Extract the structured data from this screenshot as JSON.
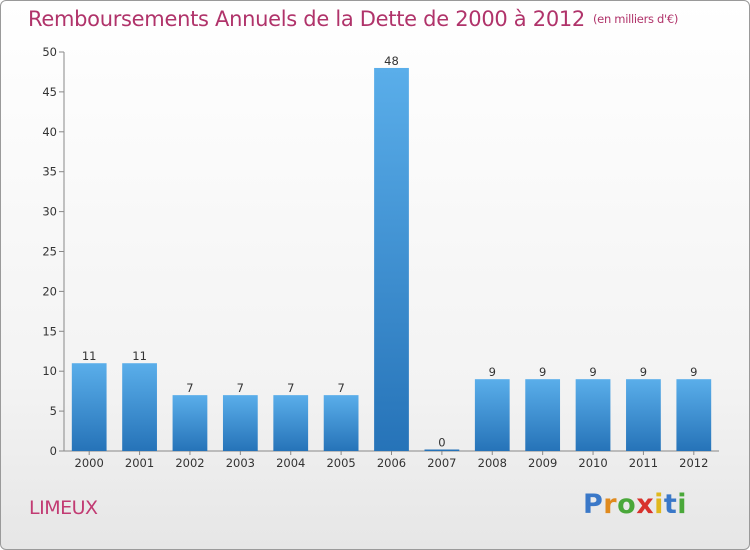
{
  "chart_data": {
    "type": "bar",
    "title": "Remboursements Annuels de la Dette de 2000 à 2012",
    "unit_note": "(en milliers d'€)",
    "categories": [
      "2000",
      "2001",
      "2002",
      "2003",
      "2004",
      "2005",
      "2006",
      "2007",
      "2008",
      "2009",
      "2010",
      "2011",
      "2012"
    ],
    "values": [
      11,
      11,
      7,
      7,
      7,
      7,
      48,
      0,
      9,
      9,
      9,
      9,
      9
    ],
    "ylim": [
      0,
      50
    ],
    "yticks": [
      0,
      5,
      10,
      15,
      20,
      25,
      30,
      35,
      40,
      45,
      50
    ],
    "grid": false,
    "bar_color": "#3a8fd8"
  },
  "commune": "LIMEUX",
  "logo": {
    "letters": [
      {
        "ch": "P",
        "color": "#3a78c8"
      },
      {
        "ch": "r",
        "color": "#e08a1e"
      },
      {
        "ch": "o",
        "color": "#4aa83a"
      },
      {
        "ch": "x",
        "color": "#d8322c"
      },
      {
        "ch": "i",
        "color": "#e0b81e"
      },
      {
        "ch": "t",
        "color": "#3a78c8"
      },
      {
        "ch": "i",
        "color": "#4aa83a"
      }
    ]
  }
}
